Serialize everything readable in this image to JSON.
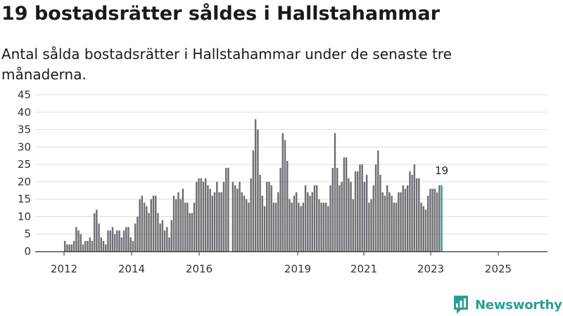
{
  "title": "19 bostadsrätter såldes i Hallstahammar",
  "subtitle": "Antal sålda bostadsrätter i Hallstahammar under de senaste tre månaderna.",
  "brand": {
    "name": "Newsworthy",
    "icon": "newsworthy-logo-icon"
  },
  "colors": {
    "bar": "#6d6d73",
    "highlight": "#2a9d93",
    "grid": "#dddddd",
    "axis": "#333333",
    "brand": "#2d9d94"
  },
  "chart_data": {
    "type": "bar",
    "title": "19 bostadsrätter såldes i Hallstahammar",
    "xlabel": "",
    "ylabel": "",
    "ylim": [
      0,
      45
    ],
    "yticks": [
      0,
      5,
      10,
      15,
      20,
      25,
      30,
      35,
      40,
      45
    ],
    "xticks": [
      "2012",
      "2014",
      "2016",
      "2019",
      "2021",
      "2023",
      "2025"
    ],
    "grid": true,
    "value_label": "19",
    "series": [
      {
        "name": "Antal sålda bostadsrätter",
        "values": [
          3,
          2,
          2,
          2,
          3,
          7,
          6,
          5,
          2,
          3,
          3,
          4,
          3,
          11,
          12,
          8,
          4,
          3,
          2,
          6,
          6,
          7,
          5,
          6,
          6,
          4,
          6,
          7,
          7,
          4,
          3,
          8,
          10,
          15,
          16,
          14,
          13,
          11,
          15,
          16,
          16,
          11,
          8,
          9,
          6,
          7,
          4,
          9,
          16,
          15,
          17,
          15,
          18,
          14,
          14,
          11,
          11,
          14,
          20,
          21,
          21,
          20,
          21,
          19,
          18,
          16,
          17,
          20,
          17,
          17,
          20,
          24,
          24,
          null,
          20,
          19,
          18,
          20,
          17,
          16,
          15,
          14,
          21,
          29,
          38,
          35,
          22,
          16,
          13,
          20,
          20,
          19,
          14,
          14,
          17,
          24,
          34,
          32,
          26,
          15,
          14,
          16,
          17,
          14,
          13,
          14,
          19,
          17,
          16,
          17,
          19,
          19,
          15,
          14,
          14,
          14,
          13,
          19,
          24,
          34,
          24,
          19,
          20,
          27,
          27,
          21,
          20,
          15,
          23,
          23,
          25,
          25,
          20,
          22,
          14,
          15,
          19,
          25,
          29,
          22,
          17,
          16,
          19,
          17,
          16,
          14,
          14,
          17,
          17,
          19,
          18,
          19,
          23,
          22,
          25,
          21,
          21,
          14,
          13,
          12,
          16,
          18,
          18,
          18,
          17,
          19,
          19
        ]
      }
    ]
  }
}
